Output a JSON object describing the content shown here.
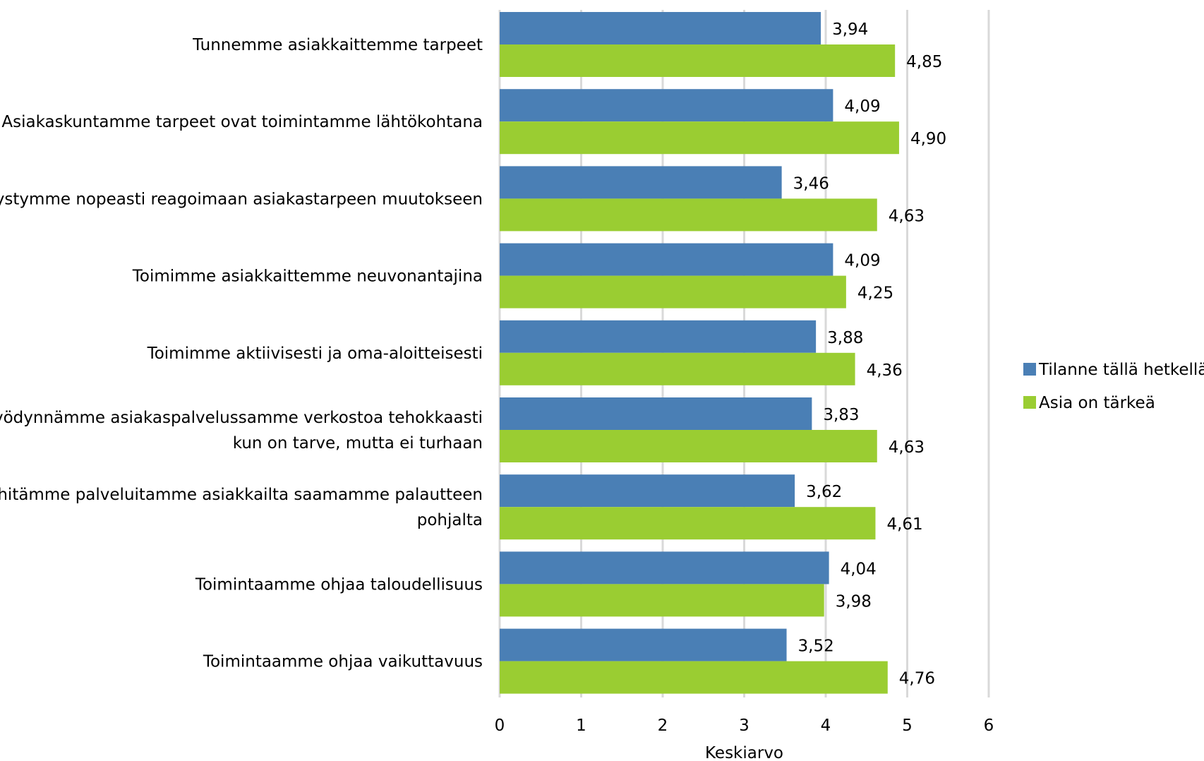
{
  "chart_data": {
    "type": "bar",
    "orientation": "horizontal",
    "categories": [
      [
        "Tunnemme asiakkaittemme tarpeet"
      ],
      [
        "Asiakaskuntamme tarpeet ovat toimintamme lähtökohtana"
      ],
      [
        "Pystymme nopeasti reagoimaan asiakastarpeen muutokseen"
      ],
      [
        "Toimimme asiakkaittemme neuvonantajina"
      ],
      [
        "Toimimme aktiivisesti ja oma-aloitteisesti"
      ],
      [
        "Hyödynnämme asiakaspalvelussamme verkostoa tehokkaasti",
        "kun on tarve, mutta ei turhaan"
      ],
      [
        "Kehitämme palveluitamme asiakkailta saamamme palautteen",
        "pohjalta"
      ],
      [
        "Toimintaamme ohjaa taloudellisuus"
      ],
      [
        "Toimintaamme ohjaa vaikuttavuus"
      ]
    ],
    "series": [
      {
        "name": "Tilanne tällä hetkellä",
        "color": "#4a7fb5",
        "values": [
          3.94,
          4.09,
          3.46,
          4.09,
          3.88,
          3.83,
          3.62,
          4.04,
          3.52
        ],
        "labels": [
          "3,94",
          "4,09",
          "3,46",
          "4,09",
          "3,88",
          "3,83",
          "3,62",
          "4,04",
          "3,52"
        ]
      },
      {
        "name": "Asia on tärkeä",
        "color": "#9acd32",
        "values": [
          4.85,
          4.9,
          4.63,
          4.25,
          4.36,
          4.63,
          4.61,
          3.98,
          4.76
        ],
        "labels": [
          "4,85",
          "4,90",
          "4,63",
          "4,25",
          "4,36",
          "4,63",
          "4,61",
          "3,98",
          "4,76"
        ]
      }
    ],
    "xlim": [
      0,
      6
    ],
    "xticks": [
      0,
      1,
      2,
      3,
      4,
      5,
      6
    ],
    "xlabel": "Keskiarvo",
    "grid": "vertical",
    "legend_position": "right"
  }
}
